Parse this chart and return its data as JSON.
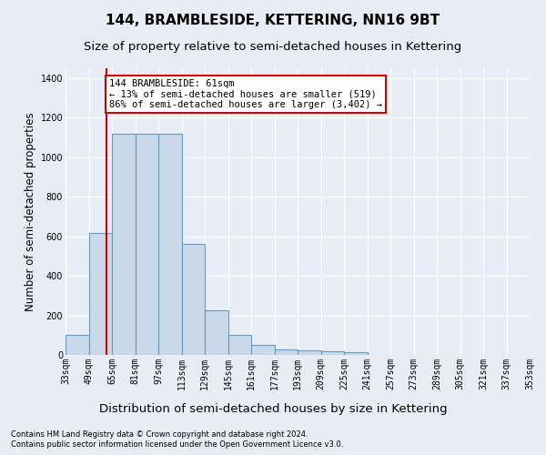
{
  "title": "144, BRAMBLESIDE, KETTERING, NN16 9BT",
  "subtitle": "Size of property relative to semi-detached houses in Kettering",
  "xlabel": "Distribution of semi-detached houses by size in Kettering",
  "ylabel": "Number of semi-detached properties",
  "footer1": "Contains HM Land Registry data © Crown copyright and database right 2024.",
  "footer2": "Contains public sector information licensed under the Open Government Licence v3.0.",
  "annotation_line0": "144 BRAMBLESIDE: 61sqm",
  "annotation_line1": "← 13% of semi-detached houses are smaller (519)",
  "annotation_line2": "86% of semi-detached houses are larger (3,402) →",
  "property_size": 61,
  "bin_edges": [
    33,
    49,
    65,
    81,
    97,
    113,
    129,
    145,
    161,
    177,
    193,
    209,
    225,
    241,
    257,
    273,
    289,
    305,
    321,
    337,
    353
  ],
  "bar_values": [
    100,
    619,
    1120,
    1120,
    1120,
    560,
    225,
    100,
    50,
    28,
    25,
    20,
    15,
    0,
    0,
    0,
    0,
    0,
    0,
    0
  ],
  "bar_color": "#c9d9ea",
  "bar_edge_color": "#6699bb",
  "vline_color": "#cc0000",
  "ylim": [
    0,
    1450
  ],
  "yticks": [
    0,
    200,
    400,
    600,
    800,
    1000,
    1200,
    1400
  ],
  "background_color": "#e8edf5",
  "plot_background": "#e8edf5",
  "grid_color": "#ffffff",
  "annotation_box_facecolor": "#ffffff",
  "annotation_box_edgecolor": "#cc0000",
  "title_fontsize": 11,
  "subtitle_fontsize": 9.5,
  "ylabel_fontsize": 8.5,
  "xlabel_fontsize": 9.5,
  "tick_fontsize": 7,
  "annotation_fontsize": 7.5,
  "footer_fontsize": 6
}
